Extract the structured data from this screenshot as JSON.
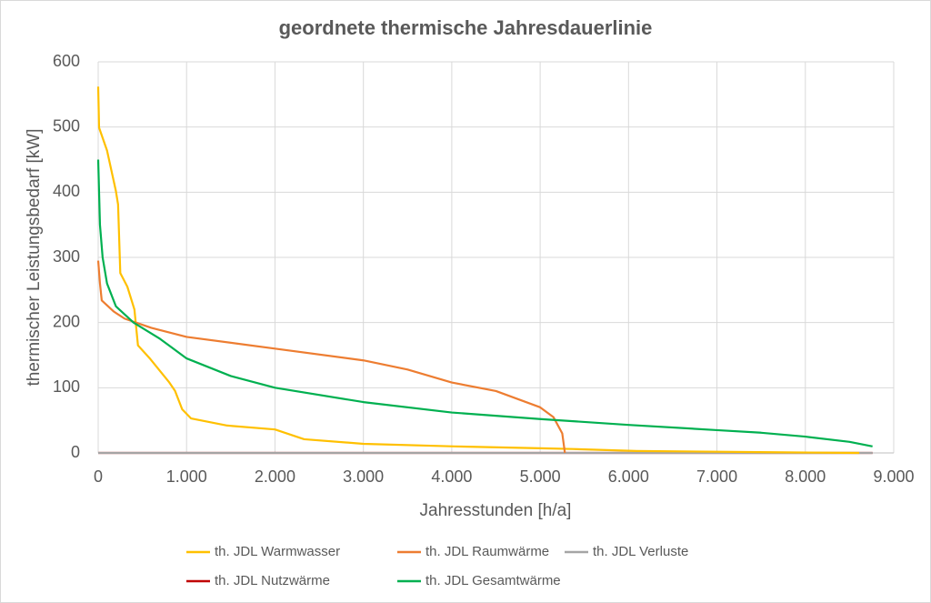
{
  "chart_data": {
    "type": "line",
    "title": "geordnete thermische Jahresdauerlinie",
    "x_label": "Jahresstunden [h/a]",
    "y_label": "thermischer Leistungsbedarf [kW]",
    "xlim": [
      0,
      9000
    ],
    "xticks": [
      0,
      {
        "value": 1000,
        "label": "1.000"
      },
      {
        "value": 2000,
        "label": "2.000"
      },
      {
        "value": 3000,
        "label": "3.000"
      },
      {
        "value": 4000,
        "label": "4.000"
      },
      {
        "value": 5000,
        "label": "5.000"
      },
      {
        "value": 6000,
        "label": "6.000"
      },
      {
        "value": 7000,
        "label": "7.000"
      },
      {
        "value": 8000,
        "label": "8.000"
      },
      {
        "value": 9000,
        "label": "9.000"
      }
    ],
    "ylim": [
      0,
      600
    ],
    "yticks": [
      0,
      100,
      200,
      300,
      400,
      500,
      600
    ],
    "grid": true,
    "series": [
      {
        "name": "th. JDL Warmwasser",
        "color": "#ffc000",
        "x": [
          0,
          10,
          100,
          200,
          225,
          250,
          330,
          410,
          450,
          590,
          800,
          870,
          950,
          1050,
          1460,
          2000,
          2330,
          3000,
          4030,
          5060,
          5370,
          6090,
          7630,
          8610
        ],
        "values": [
          562,
          499,
          464,
          402,
          381,
          276,
          255,
          220,
          165,
          144,
          109,
          95,
          67,
          53,
          42,
          36,
          21,
          14,
          10,
          7,
          6,
          3,
          1,
          0
        ]
      },
      {
        "name": "th. JDL Raumwärme",
        "color": "#ed7d31",
        "x": [
          0,
          20,
          40,
          175,
          300,
          600,
          1000,
          2000,
          3000,
          3500,
          4000,
          4500,
          5000,
          5150,
          5250,
          5280
        ],
        "values": [
          295,
          260,
          234,
          217,
          206,
          192,
          178,
          160,
          142,
          128,
          108,
          95,
          70,
          55,
          30,
          0
        ]
      },
      {
        "name": "th. JDL Verluste",
        "color": "#a5a5a5",
        "x": [
          0,
          8760
        ],
        "values": [
          0,
          0
        ]
      },
      {
        "name": "th. JDL Nutzwärme",
        "color": "#c00000",
        "x": [
          0,
          8760
        ],
        "values": [
          0,
          0
        ]
      },
      {
        "name": "th. JDL Gesamtwärme",
        "color": "#00b050",
        "x": [
          0,
          20,
          50,
          100,
          200,
          400,
          700,
          1000,
          1500,
          2000,
          3000,
          4000,
          5000,
          6000,
          7000,
          7500,
          8000,
          8500,
          8760
        ],
        "values": [
          450,
          350,
          300,
          260,
          225,
          200,
          175,
          145,
          118,
          100,
          78,
          62,
          52,
          43,
          35,
          31,
          25,
          17,
          10
        ]
      }
    ]
  }
}
